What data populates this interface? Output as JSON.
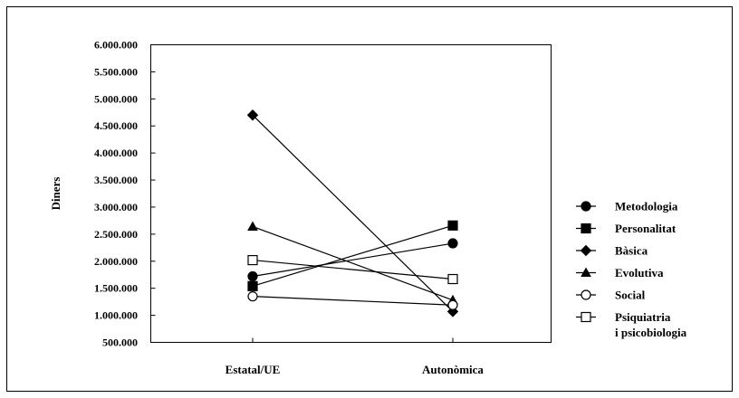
{
  "chart_data": {
    "type": "line",
    "title": "",
    "xlabel": "",
    "ylabel": "Diners",
    "categories": [
      "Estatal/UE",
      "Autonòmica"
    ],
    "ylim": [
      500000,
      6000000
    ],
    "yticks": [
      "500.000",
      "1.000.000",
      "1.500.000",
      "2.000.000",
      "2.500.000",
      "3.000.000",
      "3.500.000",
      "4.000.000",
      "4.500.000",
      "5.000.000",
      "5.500.000",
      "6.000.000"
    ],
    "ytick_values": [
      500000,
      1000000,
      1500000,
      2000000,
      2500000,
      3000000,
      3500000,
      4000000,
      4500000,
      5000000,
      5500000,
      6000000
    ],
    "grid": false,
    "legend_position": "right",
    "series": [
      {
        "name": "Metodologia",
        "marker": "circle-filled",
        "values": [
          1720000,
          2330000
        ]
      },
      {
        "name": "Personalitat",
        "marker": "square-filled",
        "values": [
          1540000,
          2660000
        ]
      },
      {
        "name": "Bàsica",
        "marker": "diamond-filled",
        "values": [
          4700000,
          1070000
        ]
      },
      {
        "name": "Evolutiva",
        "marker": "triangle-filled",
        "values": [
          2640000,
          1280000
        ]
      },
      {
        "name": "Social",
        "marker": "circle-open",
        "values": [
          1350000,
          1190000
        ]
      },
      {
        "name": "Psiquiatria\ni psicobiologia",
        "marker": "square-open",
        "values": [
          2020000,
          1670000
        ]
      }
    ]
  }
}
